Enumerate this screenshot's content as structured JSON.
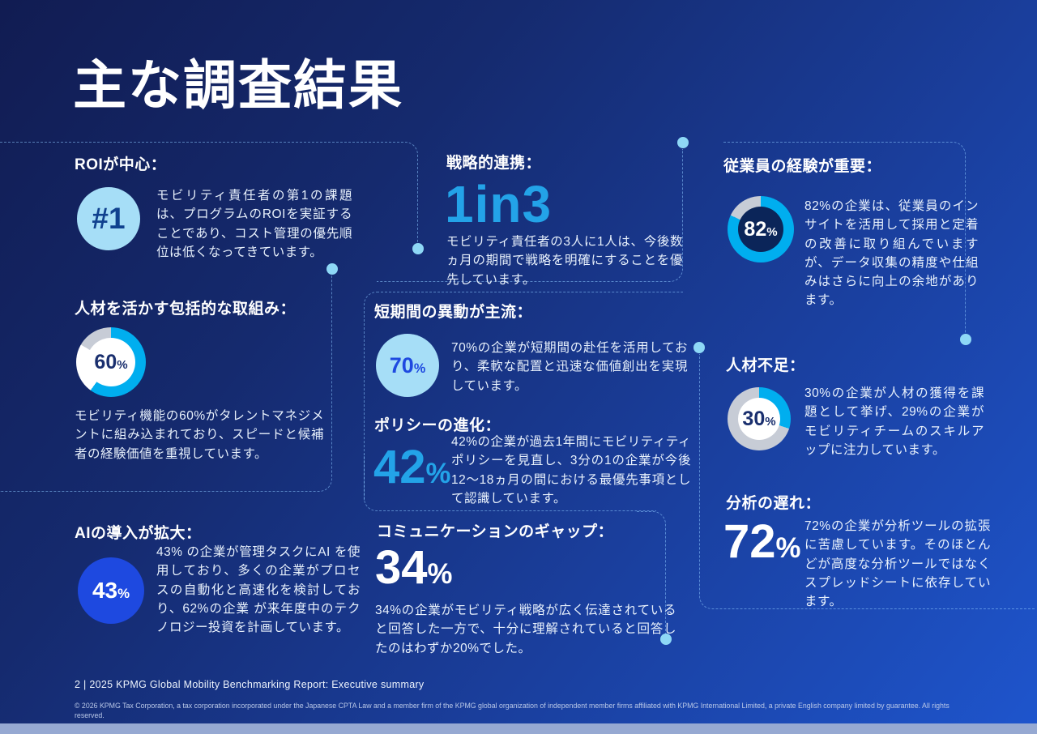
{
  "page": {
    "title": "主な調査結果",
    "footer": "2 | 2025 KPMG Global Mobility Benchmarking Report: Executive summary",
    "copyright": "© 2026 KPMG Tax Corporation, a tax corporation incorporated under the Japanese CPTA Law and a member firm of the KPMG global organization of independent member firms affiliated with KPMG International Limited, a private English company limited by guarantee. All rights reserved."
  },
  "colors": {
    "accent_cyan_text": "#23a3e8",
    "donut_cyan": "#00AEEF",
    "donut_gray": "#C7CCD6",
    "royal_blue": "#1e49e0",
    "pale_cyan": "#a6def7",
    "dark_navy_hole": "#0b2559",
    "page_edge": "#96a9d2"
  },
  "sections": {
    "roi": {
      "heading": "ROIが中心：",
      "stat": "#1",
      "text": "モビリティ責任者の第1の課題は、プログラムのROIを実証することであり、コスト管理の優先順位は低くなってきています。"
    },
    "talent": {
      "heading": "人材を活かす包括的な取組み：",
      "stat": {
        "value": "60",
        "unit": "%"
      },
      "text": "モビリティ機能の60%がタレントマネジメントに組み込まれており、スピードと候補者の経験価値を重視しています。",
      "donut": {
        "percent": 60,
        "segments": [
          {
            "color": "#00AEEF",
            "from": 0,
            "to": 216
          },
          {
            "color": "#FFFFFF",
            "from": 216,
            "to": 300
          },
          {
            "color": "#C7CCD6",
            "from": 300,
            "to": 360
          }
        ]
      }
    },
    "ai": {
      "heading": "AIの導入が拡大：",
      "stat": {
        "value": "43",
        "unit": "%"
      },
      "text": "43% の企業が管理タスクにAI を使用しており、多くの企業がプロセスの自動化と高速化を検討しており、62%の企業 が来年度中のテクノロジー投資を計画しています。"
    },
    "strategy": {
      "heading": "戦略的連携：",
      "stat": {
        "v1": "1",
        "mid": "in",
        "v2": "3"
      },
      "text": "モビリティ責任者の3人に1人は、今後数ヵ月の期間で戦略を明確にすることを優先しています。"
    },
    "shortterm": {
      "heading": "短期間の異動が主流：",
      "stat": {
        "value": "70",
        "unit": "%"
      },
      "text": "70%の企業が短期間の赴任を活用しており、柔軟な配置と迅速な価値創出を実現しています。"
    },
    "policy": {
      "heading": "ポリシーの進化：",
      "stat": {
        "value": "42",
        "unit": "%"
      },
      "text": "42%の企業が過去1年間にモビリティティポリシーを見直し、3分の1の企業が今後12～18ヵ月の間における最優先事項として認識しています。"
    },
    "communication": {
      "heading": "コミュニケーションのギャップ：",
      "stat": {
        "value": "34",
        "unit": "%"
      },
      "text": "34%の企業がモビリティ戦略が広く伝達されていると回答した一方で、十分に理解されていると回答したのはわずか20%でした。"
    },
    "employee": {
      "heading": "従業員の経験が重要：",
      "stat": {
        "value": "82",
        "unit": "%"
      },
      "text": "82%の企業は、従業員のインサイトを活用して採用と定着の改善に取り組んでいますが、データ収集の精度や仕組みはさらに向上の余地があります。",
      "donut": {
        "percent": 82,
        "segments": [
          {
            "color": "#00AEEF",
            "from": 0,
            "to": 295
          },
          {
            "color": "#C7CCD6",
            "from": 295,
            "to": 360
          }
        ]
      }
    },
    "shortage": {
      "heading": "人材不足：",
      "stat": {
        "value": "30",
        "unit": "%"
      },
      "text": "30%の企業が人材の獲得を課題として挙げ、29%の企業がモビリティチームのスキルアップに注力しています。",
      "donut": {
        "percent": 30,
        "segments": [
          {
            "color": "#00AEEF",
            "from": 0,
            "to": 108
          },
          {
            "color": "#C7CCD6",
            "from": 108,
            "to": 360
          }
        ]
      }
    },
    "analytics": {
      "heading": "分析の遅れ：",
      "stat": {
        "value": "72",
        "unit": "%"
      },
      "text": "72%の企業が分析ツールの拡張に苦慮しています。そのほとんどが高度な分析ツールではなくスプレッドシートに依存しています。"
    }
  }
}
